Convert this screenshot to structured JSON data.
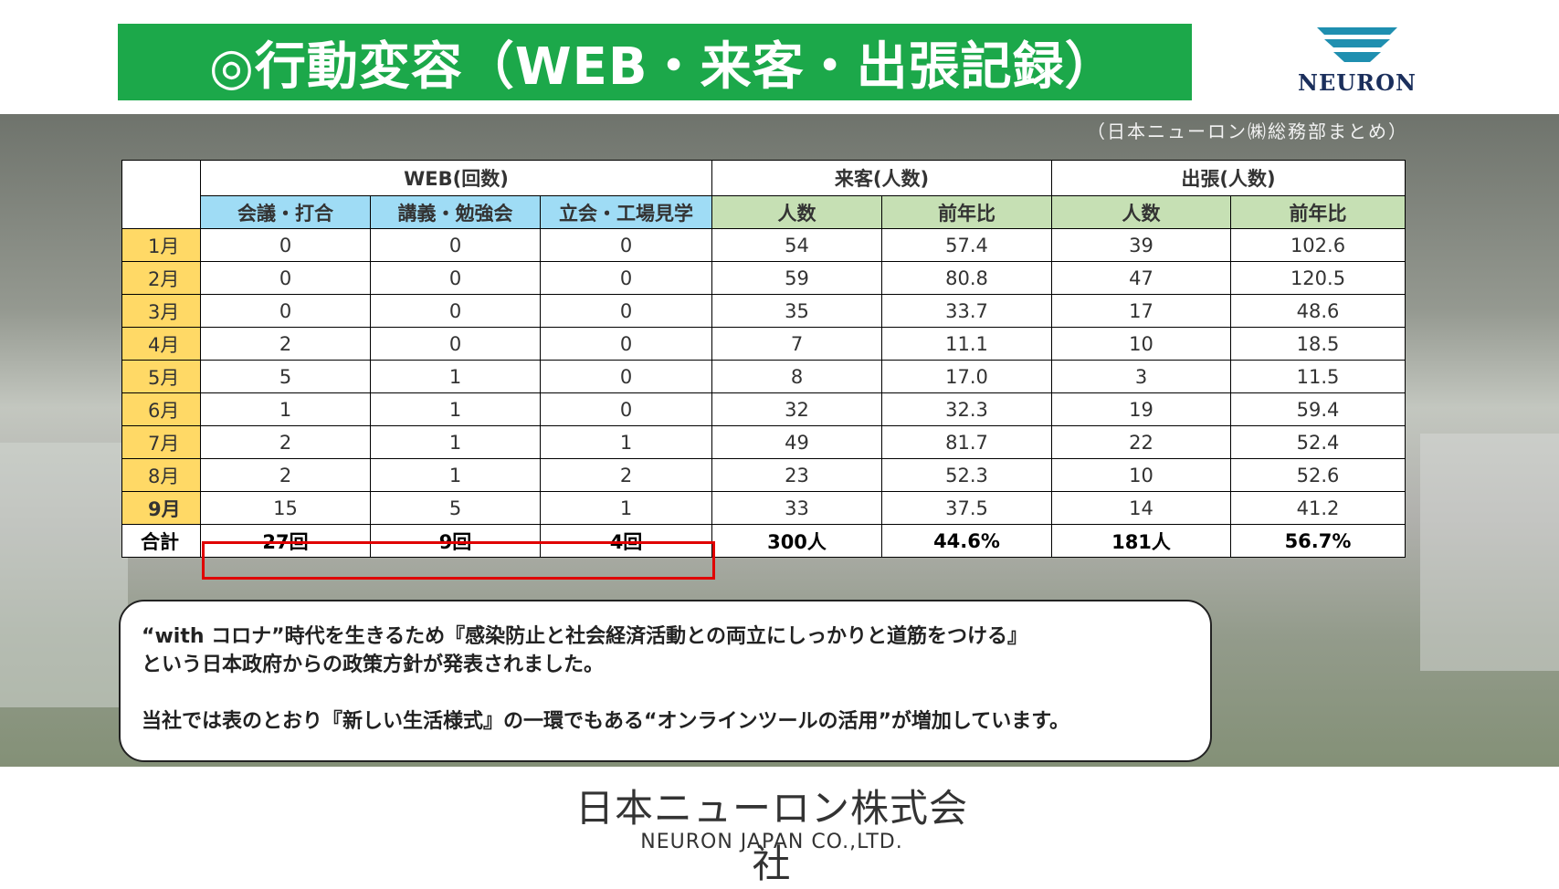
{
  "header": {
    "title": "◎行動変容（WEB・来客・出張記録）",
    "logo_text": "NEURON",
    "credit": "（日本ニューロン㈱総務部まとめ）"
  },
  "table": {
    "group_headers": {
      "web": "WEB(回数)",
      "visitors": "来客(人数)",
      "trips": "出張(人数)"
    },
    "sub_headers": {
      "meetings": "会議・打合",
      "seminars": "講義・勉強会",
      "inspections": "立会・工場見学",
      "count": "人数",
      "yoy": "前年比"
    },
    "rows": [
      {
        "month": "1月",
        "meetings": "0",
        "seminars": "0",
        "inspections": "0",
        "visitors": "54",
        "visitors_yoy": "57.4",
        "trips": "39",
        "trips_yoy": "102.6"
      },
      {
        "month": "2月",
        "meetings": "0",
        "seminars": "0",
        "inspections": "0",
        "visitors": "59",
        "visitors_yoy": "80.8",
        "trips": "47",
        "trips_yoy": "120.5"
      },
      {
        "month": "3月",
        "meetings": "0",
        "seminars": "0",
        "inspections": "0",
        "visitors": "35",
        "visitors_yoy": "33.7",
        "trips": "17",
        "trips_yoy": "48.6"
      },
      {
        "month": "4月",
        "meetings": "2",
        "seminars": "0",
        "inspections": "0",
        "visitors": "7",
        "visitors_yoy": "11.1",
        "trips": "10",
        "trips_yoy": "18.5"
      },
      {
        "month": "5月",
        "meetings": "5",
        "seminars": "1",
        "inspections": "0",
        "visitors": "8",
        "visitors_yoy": "17.0",
        "trips": "3",
        "trips_yoy": "11.5"
      },
      {
        "month": "6月",
        "meetings": "1",
        "seminars": "1",
        "inspections": "0",
        "visitors": "32",
        "visitors_yoy": "32.3",
        "trips": "19",
        "trips_yoy": "59.4"
      },
      {
        "month": "7月",
        "meetings": "2",
        "seminars": "1",
        "inspections": "1",
        "visitors": "49",
        "visitors_yoy": "81.7",
        "trips": "22",
        "trips_yoy": "52.4"
      },
      {
        "month": "8月",
        "meetings": "2",
        "seminars": "1",
        "inspections": "2",
        "visitors": "23",
        "visitors_yoy": "52.3",
        "trips": "10",
        "trips_yoy": "52.6"
      },
      {
        "month": "9月",
        "meetings": "15",
        "seminars": "5",
        "inspections": "1",
        "visitors": "33",
        "visitors_yoy": "37.5",
        "trips": "14",
        "trips_yoy": "41.2"
      }
    ],
    "total": {
      "label": "合計",
      "meetings": "27回",
      "seminars": "9回",
      "inspections": "4回",
      "visitors": "300人",
      "visitors_yoy": "44.6%",
      "trips": "181人",
      "trips_yoy": "56.7%"
    }
  },
  "note": {
    "line1": "“with コロナ”時代を生きるため『感染防止と社会経済活動との両立にしっかりと道筋をつける』",
    "line2": "という日本政府からの政策方針が発表されました。",
    "line3": "当社では表のとおり『新しい生活様式』の一環でもある“オンラインツールの活用”が増加しています。"
  },
  "footer": {
    "company_jp": "日本ニューロン株式会社",
    "company_en": "NEURON JAPAN CO.,LTD."
  },
  "colors": {
    "title_bg": "#1ca84a",
    "web_header": "#9fdcf5",
    "green_header": "#c6e0b4",
    "month_cell": "#ffd966",
    "highlight_border": "#e00000",
    "logo_blue": "#1f8fb0"
  }
}
